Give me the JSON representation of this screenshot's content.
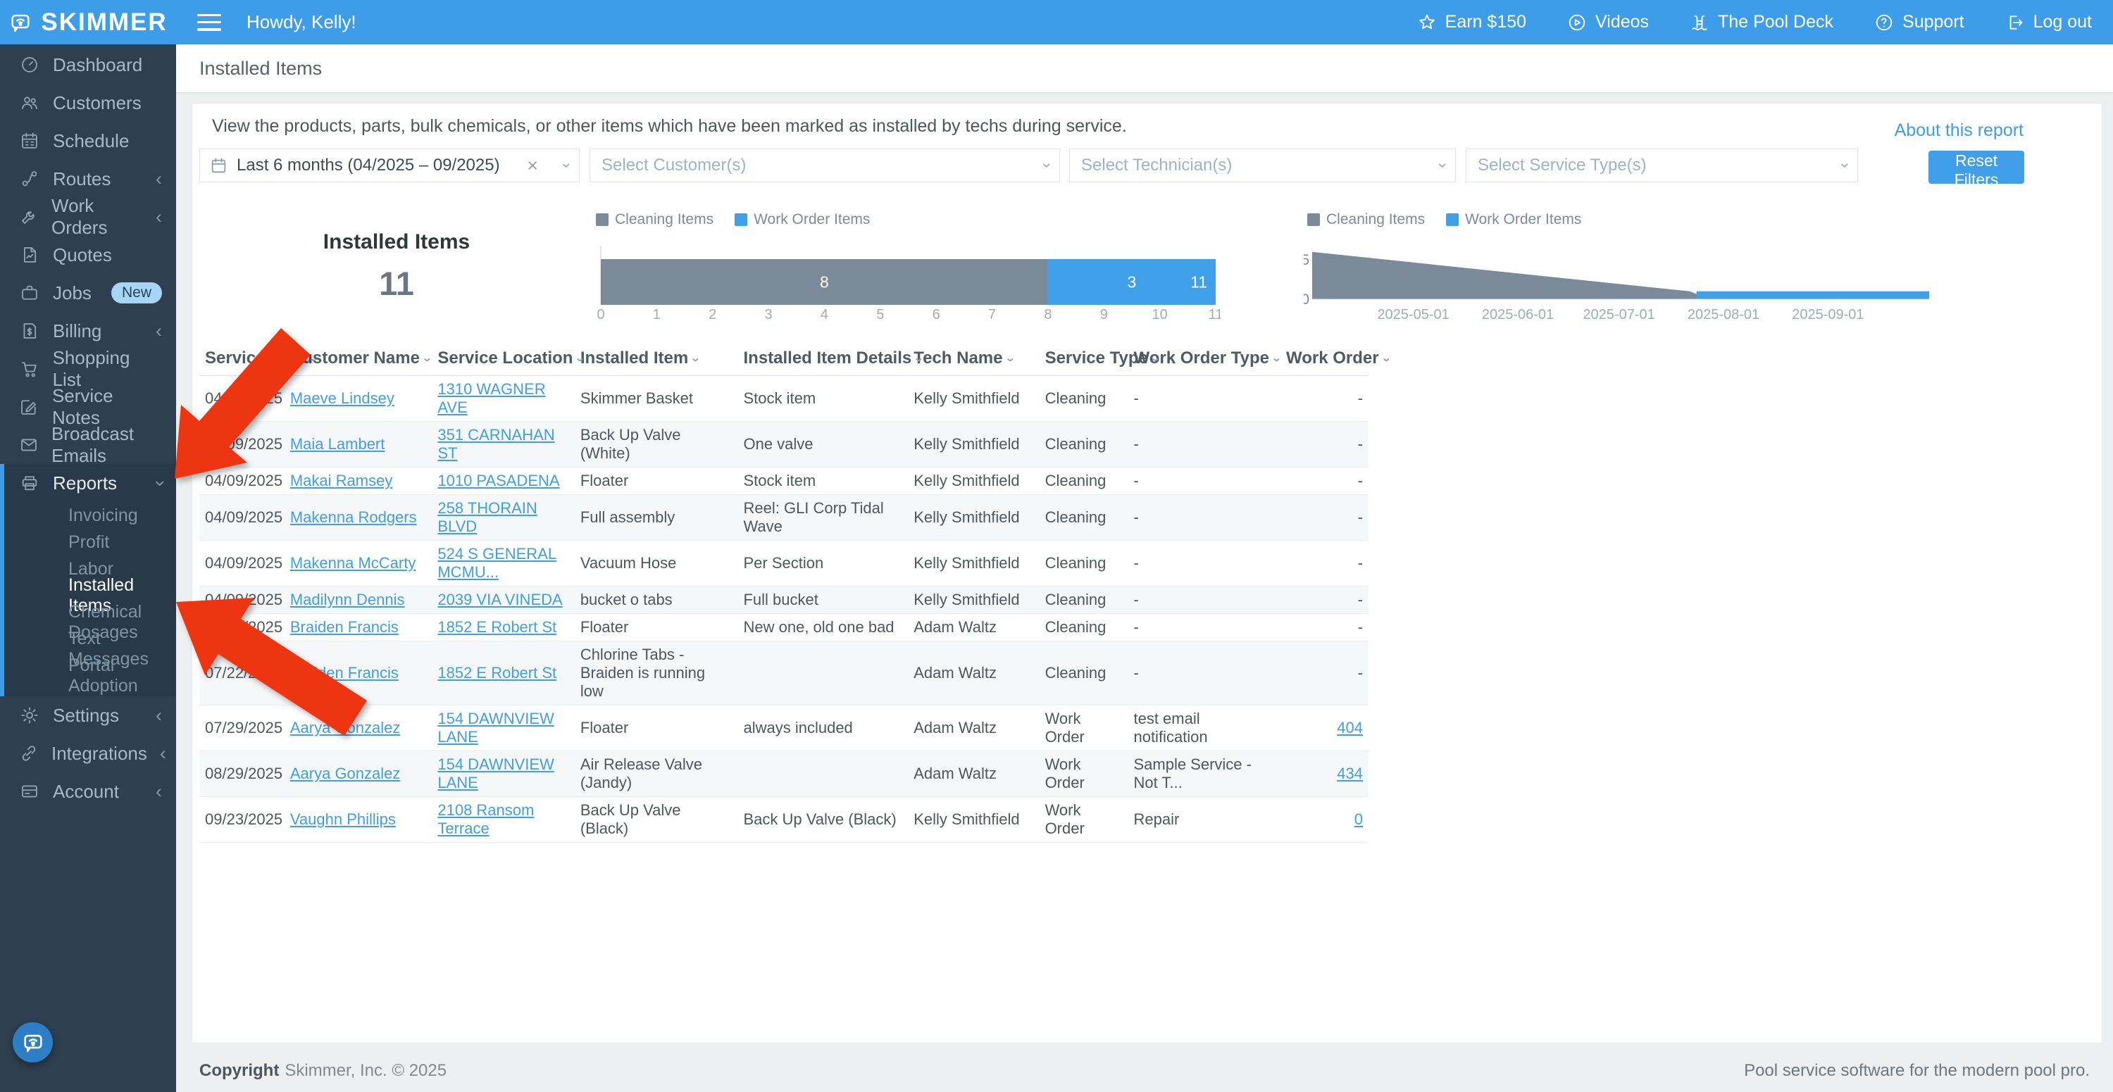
{
  "topbar": {
    "brand": "SKIMMER",
    "greeting": "Howdy, Kelly!",
    "links": [
      {
        "icon": "star-icon",
        "label": "Earn $150"
      },
      {
        "icon": "play-circle-icon",
        "label": "Videos"
      },
      {
        "icon": "pool-ladder-icon",
        "label": "The Pool Deck"
      },
      {
        "icon": "question-circle-icon",
        "label": "Support"
      },
      {
        "icon": "logout-icon",
        "label": "Log out"
      }
    ]
  },
  "sidebar": {
    "items": [
      {
        "icon": "dashboard-icon",
        "label": "Dashboard"
      },
      {
        "icon": "customers-icon",
        "label": "Customers"
      },
      {
        "icon": "schedule-icon",
        "label": "Schedule"
      },
      {
        "icon": "routes-icon",
        "label": "Routes",
        "chevron": "left"
      },
      {
        "icon": "work-orders-icon",
        "label": "Work Orders",
        "chevron": "left"
      },
      {
        "icon": "quotes-icon",
        "label": "Quotes"
      },
      {
        "icon": "jobs-icon",
        "label": "Jobs",
        "badge": "New"
      },
      {
        "icon": "billing-icon",
        "label": "Billing",
        "chevron": "left"
      },
      {
        "icon": "shopping-list-icon",
        "label": "Shopping List"
      },
      {
        "icon": "service-notes-icon",
        "label": "Service Notes"
      },
      {
        "icon": "broadcast-emails-icon",
        "label": "Broadcast Emails"
      },
      {
        "icon": "reports-icon",
        "label": "Reports",
        "chevron": "down",
        "active": true,
        "children": [
          "Invoicing",
          "Profit",
          "Labor",
          "Installed Items",
          "Chemical Dosages",
          "Text Messages",
          "Portal Adoption"
        ],
        "active_child": "Installed Items"
      },
      {
        "icon": "settings-icon",
        "label": "Settings",
        "chevron": "left"
      },
      {
        "icon": "integrations-icon",
        "label": "Integrations",
        "chevron": "left"
      },
      {
        "icon": "account-icon",
        "label": "Account",
        "chevron": "left"
      }
    ]
  },
  "page": {
    "title": "Installed Items",
    "description": "View the products, parts, bulk chemicals, or other items which have been marked as installed by techs during service.",
    "about_link": "About this report",
    "reset_button": "Reset Filters"
  },
  "filters": {
    "date_range": "Last 6 months (04/2025 – 09/2025)",
    "customer_placeholder": "Select Customer(s)",
    "technician_placeholder": "Select Technician(s)",
    "service_type_placeholder": "Select Service Type(s)"
  },
  "summary": {
    "label": "Installed Items",
    "value": "11"
  },
  "legend": [
    "Cleaning Items",
    "Work Order Items"
  ],
  "chart_data": [
    {
      "type": "bar",
      "orientation": "horizontal",
      "stacked": true,
      "title": "Installed Items",
      "series": [
        {
          "name": "Cleaning Items",
          "value": 8,
          "color": "#7b8a99"
        },
        {
          "name": "Work Order Items",
          "value": 3,
          "color": "#41a0ea"
        }
      ],
      "total": 11,
      "total_label": "11",
      "xlim": [
        0,
        11
      ],
      "tick_step": 1,
      "legend_position": "top"
    },
    {
      "type": "area",
      "series": [
        {
          "name": "Cleaning Items",
          "color": "#7b8a99",
          "points": [
            [
              "2025-04-01",
              6
            ],
            [
              "2025-07-22",
              1
            ],
            [
              "2025-07-28",
              0
            ]
          ]
        },
        {
          "name": "Work Order Items",
          "color": "#41a0ea",
          "points": [
            [
              "2025-07-24",
              1
            ],
            [
              "2025-10-01",
              1
            ]
          ]
        }
      ],
      "x_ticks": [
        "2025-05-01",
        "2025-06-01",
        "2025-07-01",
        "2025-08-01",
        "2025-09-01"
      ],
      "x_domain": [
        "2025-04-01",
        "2025-10-01"
      ],
      "y_ticks": [
        0,
        5
      ],
      "ylim": [
        0,
        6.5
      ],
      "legend_position": "top"
    }
  ],
  "table": {
    "columns": [
      "Service Date",
      "Customer Name",
      "Service Location",
      "Installed Item",
      "Installed Item Details",
      "Tech Name",
      "Service Type",
      "Work Order Type",
      "Work Order"
    ],
    "rows": [
      [
        "04/09/2025",
        "Maeve Lindsey",
        "1310 WAGNER AVE",
        "Skimmer Basket",
        "Stock item",
        "Kelly Smithfield",
        "Cleaning",
        "-",
        "-"
      ],
      [
        "04/09/2025",
        "Maia Lambert",
        "351 CARNAHAN ST",
        "Back Up Valve (White)",
        "One valve",
        "Kelly Smithfield",
        "Cleaning",
        "-",
        "-"
      ],
      [
        "04/09/2025",
        "Makai Ramsey",
        "1010 PASADENA",
        "Floater",
        "Stock item",
        "Kelly Smithfield",
        "Cleaning",
        "-",
        "-"
      ],
      [
        "04/09/2025",
        "Makenna Rodgers",
        "258 THORAIN BLVD",
        "Full assembly",
        "Reel: GLI Corp Tidal Wave",
        "Kelly Smithfield",
        "Cleaning",
        "-",
        "-"
      ],
      [
        "04/09/2025",
        "Makenna McCarty",
        "524 S GENERAL MCMU...",
        "Vacuum Hose",
        "Per Section",
        "Kelly Smithfield",
        "Cleaning",
        "-",
        "-"
      ],
      [
        "04/09/2025",
        "Madilynn Dennis",
        "2039 VIA VINEDA",
        "bucket o tabs",
        "Full bucket",
        "Kelly Smithfield",
        "Cleaning",
        "-",
        "-"
      ],
      [
        "07/22/2025",
        "Braiden Francis",
        "1852 E Robert St",
        "Floater",
        "New one, old one bad",
        "Adam Waltz",
        "Cleaning",
        "-",
        "-"
      ],
      [
        "07/22/2025",
        "Braiden Francis",
        "1852 E Robert St",
        "Chlorine Tabs - Braiden is running low",
        "",
        "Adam Waltz",
        "Cleaning",
        "-",
        "-"
      ],
      [
        "07/29/2025",
        "Aarya Gonzalez",
        "154 DAWNVIEW LANE",
        "Floater",
        "always included",
        "Adam Waltz",
        "Work Order",
        "test email notification",
        "404"
      ],
      [
        "08/29/2025",
        "Aarya Gonzalez",
        "154 DAWNVIEW LANE",
        "Air Release Valve (Jandy)",
        "",
        "Adam Waltz",
        "Work Order",
        "Sample Service - Not T...",
        "434"
      ],
      [
        "09/23/2025",
        "Vaughn Phillips",
        "2108 Ransom Terrace",
        "Back Up Valve (Black)",
        "Back Up Valve (Black)",
        "Kelly Smithfield",
        "Work Order",
        "Repair",
        "0"
      ]
    ]
  },
  "footer": {
    "copyright_bold": "Copyright",
    "copyright_rest": "Skimmer, Inc. © 2025",
    "tagline": "Pool service software for the modern pool pro."
  },
  "colors": {
    "accent": "#3e9de9",
    "sidebar": "#2e3f50",
    "bar_gray": "#7b8a99",
    "bar_blue": "#41a0ea",
    "arrow_red": "#ee3511"
  }
}
